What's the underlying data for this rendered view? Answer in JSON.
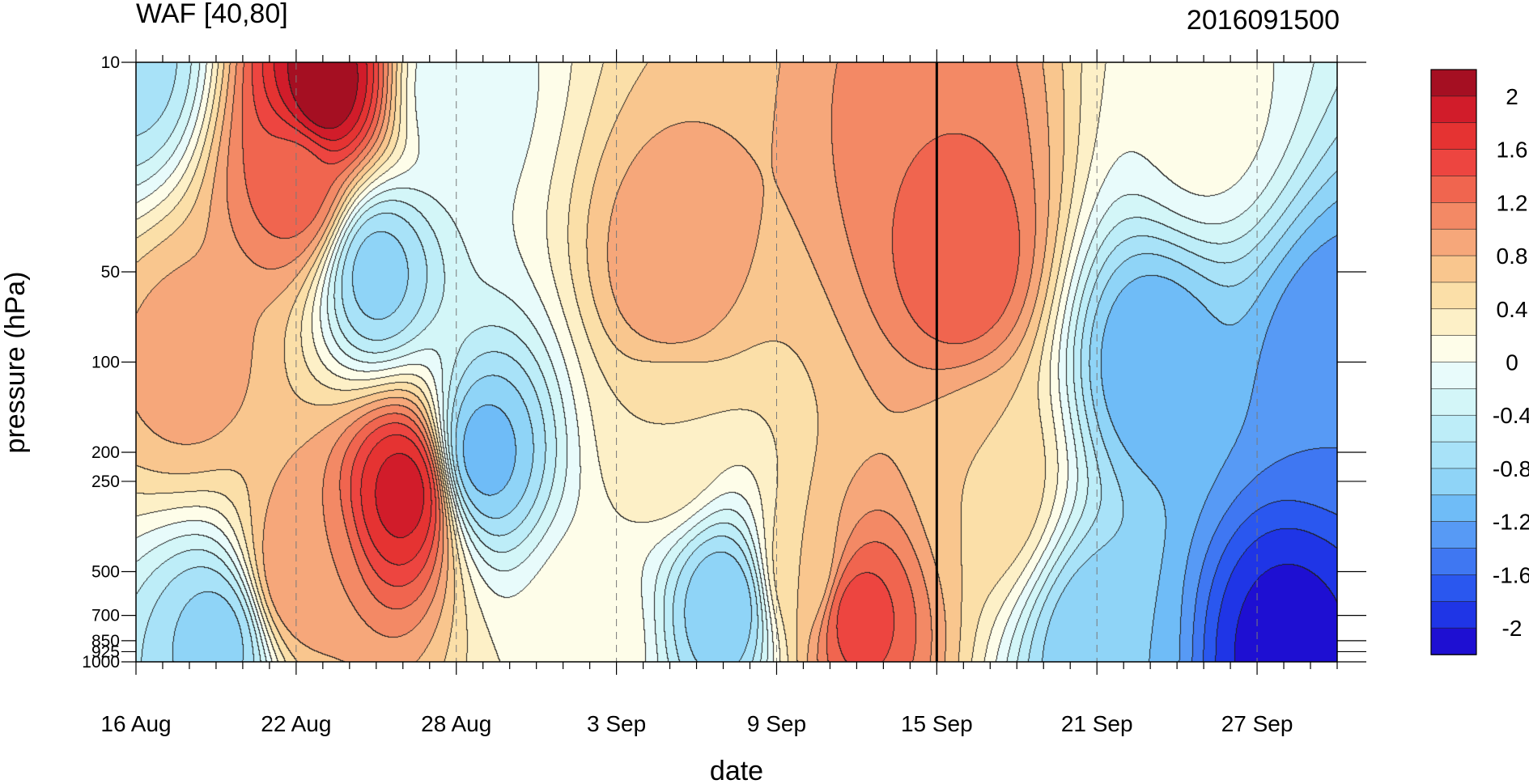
{
  "chart_data": {
    "type": "heatmap",
    "title": "WAF [40,80]",
    "right_title": "2016091500",
    "xlabel": "date",
    "ylabel": "pressure (hPa)",
    "x_ticks": [
      "16 Aug",
      "22 Aug",
      "28 Aug",
      "3 Sep",
      "9 Sep",
      "15 Sep",
      "21 Sep",
      "27 Sep"
    ],
    "x_day_range": [
      0,
      45
    ],
    "y_ticks": [
      10,
      50,
      100,
      200,
      250,
      500,
      700,
      850,
      925,
      1000
    ],
    "ylim": [
      1000,
      10
    ],
    "y_scale": "log",
    "marker_date": "15 Sep",
    "colorbar": {
      "levels": [
        -2.2,
        -2.0,
        -1.8,
        -1.6,
        -1.4,
        -1.2,
        -1.0,
        -0.8,
        -0.6,
        -0.4,
        -0.2,
        0.0,
        0.2,
        0.4,
        0.6,
        0.8,
        1.0,
        1.2,
        1.4,
        1.6,
        1.8,
        2.0,
        2.2
      ],
      "labels": [
        "2",
        "1.6",
        "1.2",
        "0.8",
        "0.4",
        "0",
        "-0.4",
        "-0.8",
        "-1.2",
        "-1.6",
        "-2"
      ],
      "colors": [
        "#1e0fd2",
        "#1f35e6",
        "#2a57ef",
        "#3f77f2",
        "#579af5",
        "#6fbcf7",
        "#8fd4f7",
        "#a8e2f8",
        "#bdedf8",
        "#d3f6f8",
        "#e8fbfb",
        "#fefde9",
        "#fdf0c7",
        "#fbdfa8",
        "#f9c68e",
        "#f6a77a",
        "#f38965",
        "#f0654f",
        "#ed4540",
        "#e53332",
        "#d11c2a",
        "#a50f22"
      ]
    },
    "field_centers": [
      {
        "date": "23 Aug",
        "p": 12,
        "value": 2.2
      },
      {
        "date": "22 Aug",
        "p": 25,
        "value": 1.3
      },
      {
        "date": "26 Aug",
        "p": 270,
        "value": 1.9
      },
      {
        "date": "16 Sep",
        "p": 45,
        "value": 1.4
      },
      {
        "date": "15 Sep",
        "p": 18,
        "value": 1.2
      },
      {
        "date": "5 Sep",
        "p": 50,
        "value": 1.0
      },
      {
        "date": "12 Sep",
        "p": 700,
        "value": 1.5
      },
      {
        "date": "18 Aug",
        "p": 100,
        "value": 0.9
      },
      {
        "date": "22 Aug",
        "p": 500,
        "value": 1.0
      },
      {
        "date": "25 Aug",
        "p": 50,
        "value": -0.9
      },
      {
        "date": "29 Aug",
        "p": 200,
        "value": -1.1
      },
      {
        "date": "7 Sep",
        "p": 650,
        "value": -1.0
      },
      {
        "date": "28 Sep",
        "p": 900,
        "value": -2.1
      },
      {
        "date": "30 Sep",
        "p": 100,
        "value": -1.4
      },
      {
        "date": "23 Sep",
        "p": 100,
        "value": -1.2
      },
      {
        "date": "19 Aug",
        "p": 850,
        "value": -0.9
      },
      {
        "date": "21 Sep",
        "p": 900,
        "value": -1.0
      },
      {
        "date": "17 Sep",
        "p": 250,
        "value": 0.6
      },
      {
        "date": "5 Sep",
        "p": 180,
        "value": 0.4
      },
      {
        "date": "25 Sep",
        "p": 15,
        "value": 0.1
      },
      {
        "date": "16 Aug",
        "p": 10,
        "value": -0.7
      },
      {
        "date": "28 Aug",
        "p": 12,
        "value": -0.2
      },
      {
        "date": "2 Sep",
        "p": 850,
        "value": 0.2
      },
      {
        "date": "10 Sep",
        "p": 500,
        "value": 0.6
      }
    ]
  }
}
